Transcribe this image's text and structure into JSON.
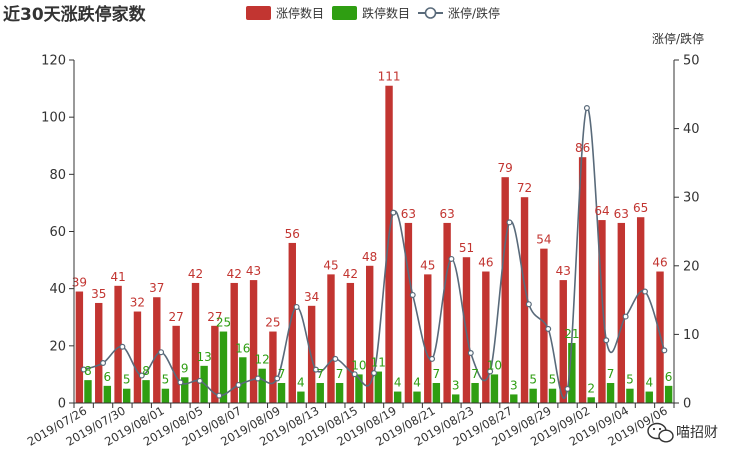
{
  "watermark": {
    "text": "喵招财",
    "icon": "wechat-icon"
  },
  "chart_data": {
    "type": "bar",
    "title": "近30天涨跌停家数",
    "x": [
      "2019/07/26",
      "2019/07/29",
      "2019/07/30",
      "2019/07/31",
      "2019/08/01",
      "2019/08/02",
      "2019/08/05",
      "2019/08/06",
      "2019/08/07",
      "2019/08/08",
      "2019/08/09",
      "2019/08/12",
      "2019/08/13",
      "2019/08/14",
      "2019/08/15",
      "2019/08/16",
      "2019/08/19",
      "2019/08/20",
      "2019/08/21",
      "2019/08/22",
      "2019/08/23",
      "2019/08/26",
      "2019/08/27",
      "2019/08/28",
      "2019/08/29",
      "2019/08/30",
      "2019/09/02",
      "2019/09/03",
      "2019/09/04",
      "2019/09/05",
      "2019/09/06"
    ],
    "x_tick_labels": [
      "2019/07/26",
      "2019/07/30",
      "2019/08/01",
      "2019/08/05",
      "2019/08/07",
      "2019/08/09",
      "2019/08/13",
      "2019/08/15",
      "2019/08/19",
      "2019/08/21",
      "2019/08/23",
      "2019/08/27",
      "2019/08/29",
      "2019/09/02",
      "2019/09/04",
      "2019/09/06"
    ],
    "series": [
      {
        "name": "涨停数目",
        "type": "bar",
        "axis": "left",
        "color": "#c23531",
        "label_color": "#c23531",
        "values": [
          39,
          35,
          41,
          32,
          37,
          27,
          42,
          27,
          42,
          43,
          25,
          56,
          34,
          45,
          42,
          48,
          111,
          63,
          45,
          63,
          51,
          46,
          79,
          72,
          54,
          43,
          86,
          64,
          63,
          65,
          46
        ]
      },
      {
        "name": "跌停数目",
        "type": "bar",
        "axis": "left",
        "color": "#2f9e12",
        "label_color": "#2f9e12",
        "values": [
          8,
          6,
          5,
          8,
          5,
          9,
          13,
          25,
          16,
          12,
          7,
          4,
          7,
          7,
          10,
          11,
          4,
          4,
          7,
          3,
          7,
          10,
          3,
          5,
          5,
          21,
          2,
          7,
          5,
          4,
          6
        ]
      },
      {
        "name": "涨停/跌停",
        "type": "line",
        "axis": "right",
        "color": "#596a7a",
        "smooth": true,
        "values": [
          4.88,
          5.83,
          8.2,
          4,
          7.4,
          3,
          3.23,
          1.08,
          2.63,
          3.58,
          3.57,
          14,
          4.86,
          6.43,
          4.2,
          4.36,
          27.75,
          15.75,
          6.43,
          21,
          7.29,
          4.6,
          26.33,
          14.4,
          10.8,
          2.05,
          43,
          9.14,
          12.6,
          16.25,
          7.67
        ]
      }
    ],
    "y_left": {
      "min": 0,
      "max": 120,
      "ticks": [
        0,
        20,
        40,
        60,
        80,
        100,
        120
      ]
    },
    "y_right": {
      "name": "涨停/跌停",
      "min": 0,
      "max": 50,
      "ticks": [
        0,
        10,
        20,
        30,
        40,
        50
      ]
    },
    "legend_position": "top-center"
  }
}
